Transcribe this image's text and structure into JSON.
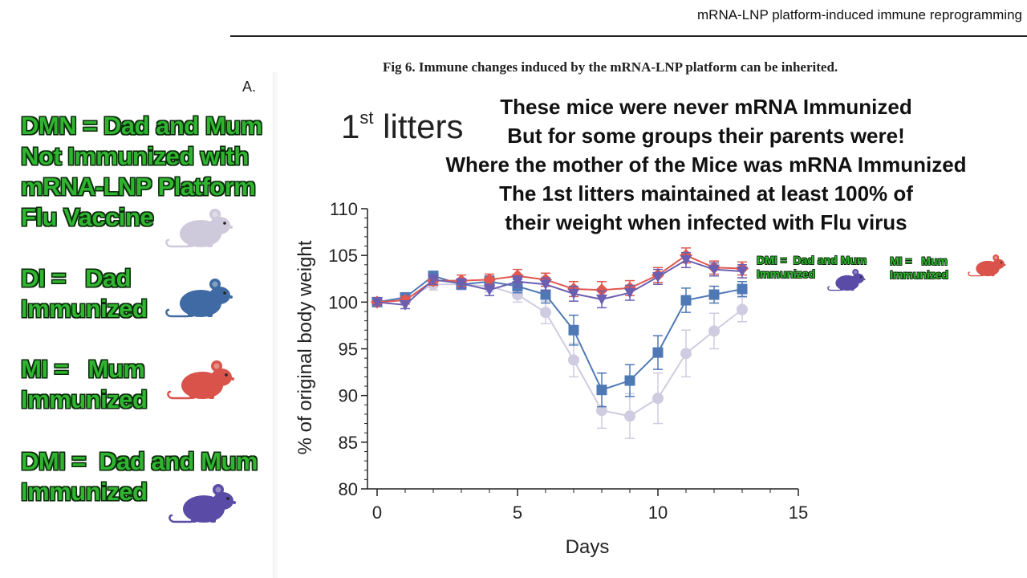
{
  "header": {
    "title": "mRNA-LNP platform-induced immune reprogramming"
  },
  "figure": {
    "caption": "Fig 6.  Immune changes induced by the mRNA-LNP platform can be inherited.",
    "panel": "A."
  },
  "chart_title": {
    "main": "1",
    "sup": "st",
    "rest": " litters"
  },
  "overlay_lines": [
    "These mice were never mRNA Immunized",
    "But for some groups their parents were!",
    "Where the mother of the Mice was mRNA Immunized",
    "The 1st litters maintained at least 100% of",
    "their weight when infected with Flu virus"
  ],
  "left_legend": [
    {
      "lines": "DMN = Dad and Mum\nNot Immunized with\nmRNA-LNP Platform\nFlu Vaccine",
      "mouse_color": "#cfc9dc",
      "mouse_icon": "mouse-icon"
    },
    {
      "lines": "DI =   Dad\nImmunized",
      "mouse_color": "#3f6aa3",
      "mouse_icon": "mouse-icon"
    },
    {
      "lines": "MI =   Mum\nImmunized",
      "mouse_color": "#d9534a",
      "mouse_icon": "mouse-icon"
    },
    {
      "lines": "DMI =  Dad and Mum\nImmunized",
      "mouse_color": "#5a4ba6",
      "mouse_icon": "mouse-icon"
    }
  ],
  "right_legend": [
    {
      "lines": "DMI =  Dad and Mum\nImmunized",
      "mouse_color": "#5a4ba6"
    },
    {
      "lines": "MI =   Mum\nImmunized",
      "mouse_color": "#d9534a"
    }
  ],
  "chart_data": {
    "type": "line",
    "xlabel": "Days",
    "ylabel": "% of original body weight",
    "xlim": [
      0,
      15
    ],
    "ylim": [
      80,
      110
    ],
    "xticks": [
      0,
      5,
      10,
      15
    ],
    "yticks": [
      80,
      85,
      90,
      95,
      100,
      105,
      110
    ],
    "x": [
      0,
      1,
      2,
      3,
      4,
      5,
      6,
      7,
      8,
      9,
      10,
      11,
      12,
      13
    ],
    "series": [
      {
        "name": "DMN",
        "color": "#cfcbe0",
        "marker": "circle",
        "values": [
          100,
          100.3,
          101.9,
          101.9,
          101.7,
          100.8,
          98.9,
          93.8,
          88.4,
          87.8,
          89.7,
          94.5,
          96.9,
          99.2
        ],
        "err": [
          0.4,
          0.5,
          0.6,
          0.6,
          0.6,
          0.8,
          1.2,
          1.8,
          1.9,
          2.4,
          2.7,
          2.5,
          1.9,
          1.3
        ]
      },
      {
        "name": "DI",
        "color": "#4f79b5",
        "marker": "square",
        "values": [
          100,
          100.5,
          102.8,
          101.9,
          102.2,
          101.7,
          100.8,
          97.0,
          90.6,
          91.6,
          94.6,
          100.2,
          100.8,
          101.4
        ],
        "err": [
          0.4,
          0.5,
          0.5,
          0.5,
          0.6,
          0.7,
          0.9,
          1.6,
          1.8,
          1.7,
          1.8,
          1.3,
          0.9,
          0.8
        ]
      },
      {
        "name": "MI",
        "color": "#e0584f",
        "marker": "diamond",
        "values": [
          100,
          100.2,
          102.3,
          102.3,
          102.4,
          102.8,
          102.4,
          101.4,
          101.3,
          101.5,
          102.9,
          105.0,
          103.7,
          103.6
        ],
        "err": [
          0.3,
          0.4,
          0.5,
          0.6,
          0.6,
          0.7,
          0.7,
          0.8,
          0.9,
          0.8,
          0.8,
          0.8,
          0.7,
          0.7
        ]
      },
      {
        "name": "DMI",
        "color": "#6a5fb1",
        "marker": "triangle-down",
        "values": [
          100,
          99.7,
          102.4,
          102.0,
          101.3,
          102.2,
          101.9,
          100.9,
          100.3,
          101.0,
          102.7,
          104.5,
          103.5,
          103.3
        ],
        "err": [
          0.3,
          0.4,
          0.5,
          0.5,
          0.6,
          0.6,
          0.7,
          0.8,
          0.9,
          0.8,
          0.8,
          0.8,
          0.7,
          0.7
        ]
      }
    ]
  }
}
